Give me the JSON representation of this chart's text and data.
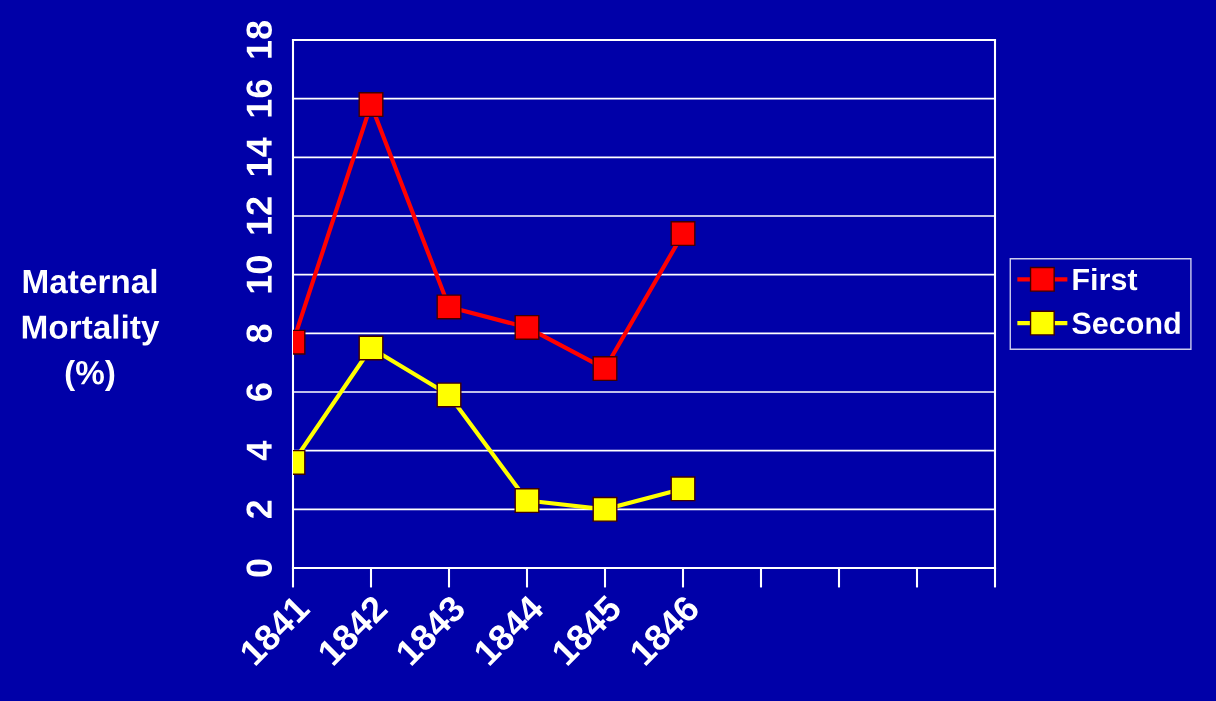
{
  "chart_data": {
    "type": "line",
    "ylabel": "Maternal Mortality (%)",
    "categories": [
      "1841",
      "1842",
      "1843",
      "1844",
      "1845",
      "1846",
      null,
      null,
      null,
      null
    ],
    "series": [
      {
        "name": "First",
        "color": "#ff0000",
        "values": [
          7.7,
          15.8,
          8.9,
          8.2,
          6.8,
          11.4,
          null,
          null,
          null,
          null
        ]
      },
      {
        "name": "Second",
        "color": "#ffff00",
        "values": [
          3.6,
          7.5,
          5.9,
          2.3,
          2.0,
          2.7,
          null,
          null,
          null,
          null
        ]
      }
    ],
    "ylim": [
      0,
      18
    ],
    "yticks": [
      0,
      2,
      4,
      6,
      8,
      10,
      12,
      14,
      16,
      18
    ],
    "grid": "y",
    "legend": "right",
    "marker": "square",
    "line_style": "solid"
  }
}
